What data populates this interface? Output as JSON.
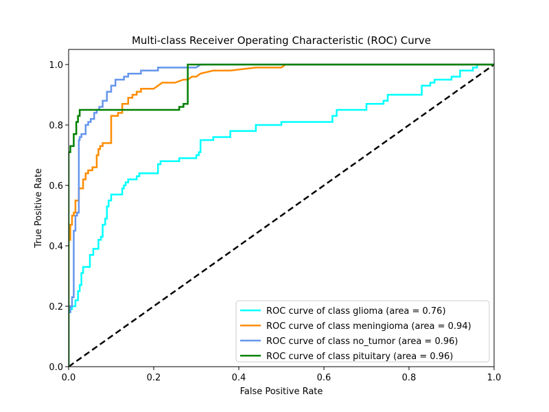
{
  "chart_data": {
    "type": "line",
    "title": "Multi-class Receiver Operating Characteristic (ROC) Curve",
    "xlabel": "False Positive Rate",
    "ylabel": "True Positive Rate",
    "xlim": [
      0.0,
      1.0
    ],
    "ylim": [
      0.0,
      1.05
    ],
    "xticks": [
      0.0,
      0.2,
      0.4,
      0.6,
      0.8,
      1.0
    ],
    "yticks": [
      0.0,
      0.2,
      0.4,
      0.6,
      0.8,
      1.0
    ],
    "xtick_labels": [
      "0.0",
      "0.2",
      "0.4",
      "0.6",
      "0.8",
      "1.0"
    ],
    "ytick_labels": [
      "0.0",
      "0.2",
      "0.4",
      "0.6",
      "0.8",
      "1.0"
    ],
    "grid": false,
    "legend_position": "lower-right",
    "diagonal": {
      "x": [
        0,
        1
      ],
      "y": [
        0,
        1
      ],
      "color": "#000000",
      "style": "dashed"
    },
    "series": [
      {
        "name": "ROC curve of class glioma (area = 0.76)",
        "color": "#00ffff",
        "x": [
          0.0,
          0.0,
          0.004,
          0.004,
          0.008,
          0.008,
          0.016,
          0.016,
          0.022,
          0.022,
          0.026,
          0.026,
          0.03,
          0.03,
          0.034,
          0.034,
          0.05,
          0.05,
          0.058,
          0.058,
          0.07,
          0.07,
          0.076,
          0.076,
          0.08,
          0.08,
          0.086,
          0.086,
          0.09,
          0.09,
          0.094,
          0.094,
          0.1,
          0.1,
          0.112,
          0.112,
          0.126,
          0.126,
          0.13,
          0.13,
          0.134,
          0.134,
          0.14,
          0.14,
          0.16,
          0.16,
          0.166,
          0.166,
          0.21,
          0.21,
          0.216,
          0.216,
          0.26,
          0.26,
          0.3,
          0.3,
          0.306,
          0.306,
          0.31,
          0.31,
          0.34,
          0.34,
          0.38,
          0.38,
          0.44,
          0.44,
          0.46,
          0.46,
          0.5,
          0.5,
          0.56,
          0.56,
          0.62,
          0.62,
          0.63,
          0.63,
          0.66,
          0.66,
          0.7,
          0.7,
          0.74,
          0.74,
          0.75,
          0.75,
          0.8,
          0.8,
          0.83,
          0.83,
          0.85,
          0.85,
          0.86,
          0.86,
          0.88,
          0.88,
          0.9,
          0.9,
          0.92,
          0.92,
          0.95,
          0.95,
          0.96,
          0.96,
          1.0
        ],
        "y": [
          0.0,
          0.18,
          0.18,
          0.19,
          0.19,
          0.2,
          0.2,
          0.22,
          0.22,
          0.25,
          0.25,
          0.27,
          0.27,
          0.31,
          0.31,
          0.33,
          0.33,
          0.37,
          0.37,
          0.39,
          0.39,
          0.42,
          0.42,
          0.43,
          0.43,
          0.47,
          0.47,
          0.49,
          0.49,
          0.53,
          0.53,
          0.55,
          0.55,
          0.57,
          0.57,
          0.57,
          0.57,
          0.59,
          0.59,
          0.6,
          0.6,
          0.61,
          0.61,
          0.62,
          0.62,
          0.63,
          0.63,
          0.64,
          0.64,
          0.67,
          0.67,
          0.68,
          0.68,
          0.69,
          0.69,
          0.7,
          0.7,
          0.71,
          0.71,
          0.75,
          0.75,
          0.76,
          0.76,
          0.78,
          0.78,
          0.8,
          0.8,
          0.8,
          0.8,
          0.81,
          0.81,
          0.81,
          0.81,
          0.83,
          0.83,
          0.85,
          0.85,
          0.85,
          0.85,
          0.87,
          0.87,
          0.88,
          0.88,
          0.9,
          0.9,
          0.9,
          0.9,
          0.93,
          0.93,
          0.94,
          0.94,
          0.95,
          0.95,
          0.95,
          0.95,
          0.96,
          0.96,
          0.98,
          0.98,
          0.99,
          0.99,
          1.0,
          1.0
        ],
        "auc": 0.76
      },
      {
        "name": "ROC curve of class meningioma (area = 0.94)",
        "color": "#ff8c00",
        "x": [
          0.0,
          0.0,
          0.004,
          0.004,
          0.008,
          0.008,
          0.012,
          0.012,
          0.016,
          0.016,
          0.024,
          0.024,
          0.034,
          0.034,
          0.04,
          0.04,
          0.046,
          0.046,
          0.056,
          0.056,
          0.066,
          0.066,
          0.07,
          0.07,
          0.074,
          0.074,
          0.08,
          0.08,
          0.1,
          0.1,
          0.116,
          0.116,
          0.126,
          0.126,
          0.14,
          0.14,
          0.15,
          0.15,
          0.16,
          0.16,
          0.17,
          0.17,
          0.2,
          0.2,
          0.2,
          0.21,
          0.21,
          0.22,
          0.22,
          0.23,
          0.23,
          0.24,
          0.24,
          0.25,
          0.25,
          0.27,
          0.27,
          0.28,
          0.28,
          0.29,
          0.29,
          0.3,
          0.3,
          0.31,
          0.31,
          0.34,
          0.34,
          0.37,
          0.37,
          0.38,
          0.38,
          0.44,
          0.44,
          0.5,
          0.5,
          0.51,
          0.51,
          0.52,
          0.52,
          1.0
        ],
        "y": [
          0.0,
          0.42,
          0.42,
          0.47,
          0.47,
          0.5,
          0.5,
          0.51,
          0.51,
          0.55,
          0.55,
          0.59,
          0.59,
          0.62,
          0.62,
          0.64,
          0.64,
          0.65,
          0.65,
          0.66,
          0.66,
          0.7,
          0.7,
          0.72,
          0.72,
          0.73,
          0.73,
          0.74,
          0.74,
          0.83,
          0.83,
          0.84,
          0.84,
          0.87,
          0.87,
          0.89,
          0.89,
          0.9,
          0.9,
          0.91,
          0.91,
          0.92,
          0.92,
          0.92,
          0.92,
          0.93,
          0.93,
          0.94,
          0.94,
          0.94,
          0.94,
          0.94,
          0.94,
          0.94,
          0.94,
          0.95,
          0.95,
          0.95,
          0.95,
          0.96,
          0.96,
          0.96,
          0.96,
          0.97,
          0.97,
          0.98,
          0.98,
          0.98,
          0.98,
          0.98,
          0.98,
          0.99,
          0.99,
          0.99,
          0.99,
          1.0,
          1.0,
          1.0,
          1.0,
          1.0
        ],
        "auc": 0.94
      },
      {
        "name": "ROC curve of class no_tumor (area = 0.96)",
        "color": "#6495ed",
        "x": [
          0.0,
          0.0,
          0.004,
          0.004,
          0.008,
          0.008,
          0.012,
          0.012,
          0.016,
          0.016,
          0.02,
          0.02,
          0.024,
          0.024,
          0.026,
          0.026,
          0.03,
          0.03,
          0.04,
          0.04,
          0.046,
          0.046,
          0.052,
          0.052,
          0.06,
          0.06,
          0.066,
          0.066,
          0.072,
          0.072,
          0.08,
          0.08,
          0.09,
          0.09,
          0.1,
          0.1,
          0.11,
          0.11,
          0.13,
          0.13,
          0.14,
          0.14,
          0.17,
          0.17,
          0.21,
          0.21,
          0.3,
          0.3,
          0.31,
          1.0
        ],
        "y": [
          0.0,
          0.18,
          0.18,
          0.2,
          0.2,
          0.23,
          0.23,
          0.45,
          0.45,
          0.5,
          0.5,
          0.51,
          0.51,
          0.75,
          0.75,
          0.76,
          0.76,
          0.77,
          0.77,
          0.8,
          0.8,
          0.81,
          0.81,
          0.82,
          0.82,
          0.84,
          0.84,
          0.85,
          0.85,
          0.86,
          0.86,
          0.88,
          0.88,
          0.91,
          0.91,
          0.93,
          0.93,
          0.95,
          0.95,
          0.96,
          0.96,
          0.97,
          0.97,
          0.98,
          0.98,
          0.99,
          0.99,
          0.99,
          1.0,
          1.0
        ],
        "auc": 0.96
      },
      {
        "name": "ROC curve of class pituitary (area = 0.96)",
        "color": "#008000",
        "x": [
          0.0,
          0.0,
          0.004,
          0.004,
          0.012,
          0.012,
          0.018,
          0.018,
          0.022,
          0.022,
          0.026,
          0.026,
          0.26,
          0.26,
          0.27,
          0.27,
          0.28,
          0.28,
          1.0
        ],
        "y": [
          0.0,
          0.71,
          0.71,
          0.73,
          0.73,
          0.77,
          0.77,
          0.81,
          0.81,
          0.83,
          0.83,
          0.85,
          0.85,
          0.86,
          0.86,
          0.87,
          0.87,
          1.0,
          1.0
        ],
        "auc": 0.96
      }
    ]
  }
}
